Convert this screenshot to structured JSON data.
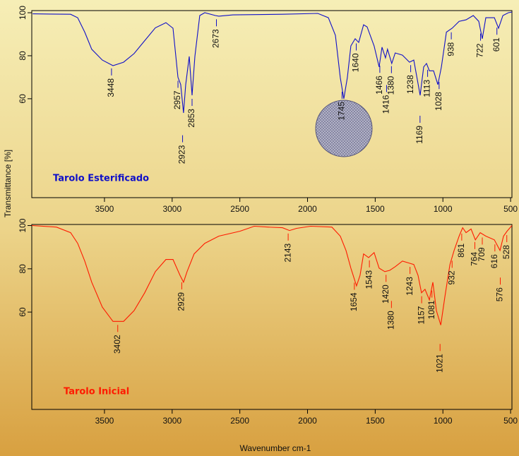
{
  "chart_data": [
    {
      "type": "line",
      "y_label": "Transmittance [%]",
      "xlim": [
        4037,
        490
      ],
      "ylim": [
        14,
        101
      ],
      "xticks": [
        3500,
        3000,
        2500,
        2000,
        1500,
        1000,
        500
      ],
      "yticks": [
        60,
        80,
        100
      ],
      "series": [
        {
          "name": "Tarolo Esterificado",
          "color": "#1010c8",
          "x": [
            4030,
            3900,
            3750,
            3698,
            3646,
            3594,
            3516,
            3437,
            3359,
            3281,
            3203,
            3124,
            3046,
            2994,
            2957,
            2937,
            2916,
            2900,
            2874,
            2853,
            2832,
            2796,
            2759,
            2681,
            2655,
            2551,
            2185,
            1924,
            1846,
            1794,
            1758,
            1732,
            1706,
            1680,
            1648,
            1622,
            1586,
            1560,
            1508,
            1471,
            1450,
            1424,
            1409,
            1378,
            1352,
            1299,
            1247,
            1215,
            1168,
            1142,
            1121,
            1100,
            1069,
            1037,
            1011,
            974,
            932,
            880,
            829,
            776,
            735,
            709,
            683,
            620,
            589,
            557,
            516,
            490
          ],
          "values": [
            99.5,
            99.4,
            99.3,
            97.7,
            91,
            83,
            78,
            75.4,
            77,
            81,
            87,
            93,
            95.4,
            92.8,
            70,
            66.6,
            53.4,
            66.6,
            79.7,
            61.6,
            79.7,
            98.7,
            100,
            98.7,
            98.4,
            99,
            99.3,
            99.7,
            97.7,
            89.5,
            69.8,
            60,
            69.8,
            84.6,
            87.9,
            86.2,
            94.4,
            93.4,
            84.6,
            74.8,
            84,
            79,
            83,
            76.4,
            81.3,
            80.3,
            77,
            78,
            61.6,
            74.8,
            76.4,
            73,
            73,
            66.6,
            74.8,
            91,
            92.8,
            96,
            96.7,
            98.7,
            96,
            87.9,
            97.7,
            97.7,
            92.8,
            98.7,
            100,
            100.3
          ]
        }
      ],
      "peaks": [
        3448,
        2957,
        2923,
        2853,
        2673,
        1745,
        1640,
        1466,
        1416,
        1380,
        1238,
        1169,
        1113,
        1028,
        938,
        722,
        601
      ]
    },
    {
      "type": "line",
      "x_label": "Wavenumber cm-1",
      "xlim": [
        4037,
        490
      ],
      "ylim": [
        15,
        100.5
      ],
      "xticks": [
        3500,
        3000,
        2500,
        2000,
        1500,
        1000,
        500
      ],
      "yticks": [
        60,
        80,
        100
      ],
      "series": [
        {
          "name": "Tarolo Inicial",
          "color": "#ff1a00",
          "x": [
            4037,
            3855,
            3750,
            3698,
            3646,
            3594,
            3516,
            3437,
            3359,
            3281,
            3203,
            3124,
            3046,
            2994,
            2942,
            2916,
            2890,
            2838,
            2759,
            2655,
            2498,
            2394,
            2290,
            2185,
            2133,
            2081,
            1977,
            1820,
            1758,
            1716,
            1680,
            1638,
            1612,
            1586,
            1549,
            1508,
            1471,
            1429,
            1393,
            1352,
            1299,
            1247,
            1215,
            1184,
            1158,
            1132,
            1100,
            1074,
            1048,
            1016,
            985,
            948,
            917,
            880,
            854,
            829,
            792,
            760,
            724,
            683,
            620,
            578,
            552,
            526,
            490
          ],
          "values": [
            100,
            99.3,
            96.7,
            91.8,
            83.6,
            73.8,
            62.3,
            55.7,
            55.7,
            60.7,
            68.9,
            78.7,
            84.3,
            84.3,
            77,
            73.8,
            78.7,
            86.9,
            91.8,
            95.1,
            97.4,
            99.7,
            99.3,
            99,
            97.7,
            98.7,
            99.7,
            99.3,
            95.1,
            88.5,
            80.3,
            72.1,
            77,
            86.9,
            85.2,
            87.5,
            80.3,
            78.7,
            79.3,
            81,
            83.6,
            82.6,
            82,
            77,
            68.9,
            70.5,
            65.6,
            73.8,
            60.7,
            54,
            67.2,
            82,
            88.5,
            95.1,
            99,
            96.7,
            98.4,
            93.4,
            96.7,
            95.1,
            93.4,
            88.5,
            95.1,
            97.4,
            100
          ]
        }
      ],
      "peaks": [
        3402,
        2929,
        2143,
        1654,
        1543,
        1420,
        1380,
        1243,
        1157,
        1081,
        1021,
        932,
        861,
        764,
        709,
        616,
        576,
        528
      ]
    }
  ]
}
